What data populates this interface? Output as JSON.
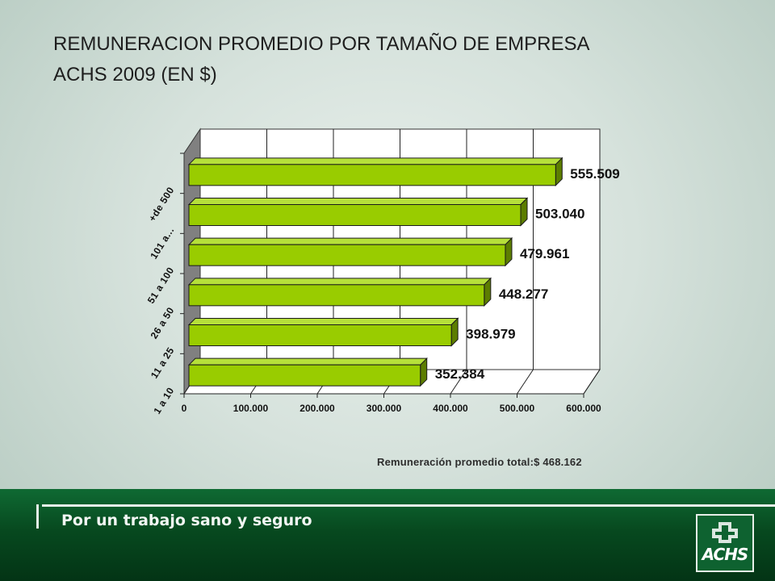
{
  "slide": {
    "title_line1": "REMUNERACION PROMEDIO POR TAMAÑO DE EMPRESA",
    "title_line2": "ACHS 2009 (EN $)",
    "total_text": "Remuneración  promedio  total:$  468.162"
  },
  "footer": {
    "slogan": "Por un trabajo sano y seguro",
    "logo_text": "ACHS"
  },
  "colors": {
    "bar_front": "#99cc00",
    "bar_top": "#b6e03a",
    "bar_side": "#5c7d00",
    "wall": "#808080",
    "footer": "#0b5a29"
  },
  "chart_data": {
    "type": "bar",
    "orientation": "horizontal",
    "title": "REMUNERACION PROMEDIO POR TAMAÑO DE EMPRESA ACHS 2009 (EN $)",
    "categories": [
      "1 a 10",
      "11 a 25",
      "26 a 50",
      "51 a 100",
      "101 a...",
      "+de 500"
    ],
    "values": [
      352384,
      398979,
      448277,
      479961,
      503040,
      555509
    ],
    "value_labels": [
      "352.384",
      "398.979",
      "448.277",
      "479.961",
      "503.040",
      "555.509"
    ],
    "xticks": [
      "0",
      "100.000",
      "200.000",
      "300.000",
      "400.000",
      "500.000",
      "600.000"
    ],
    "xlim": [
      0,
      600000
    ],
    "grid": true,
    "xlabel": "",
    "ylabel": ""
  }
}
